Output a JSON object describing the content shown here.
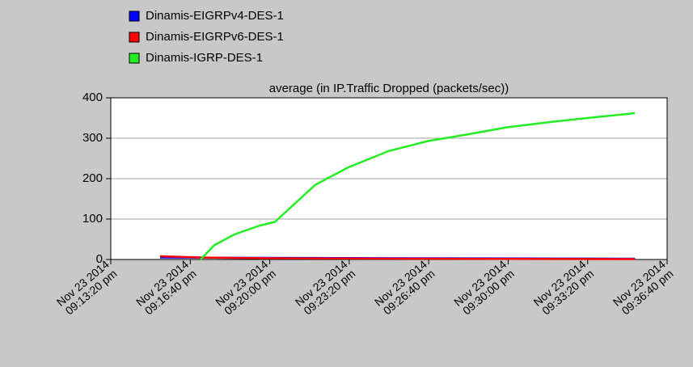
{
  "chart_data": {
    "type": "line",
    "title": "average (in IP.Traffic Dropped (packets/sec))",
    "xlim": [
      "2014-11-23T21:13:20",
      "2014-11-23T21:36:40"
    ],
    "xticks": [
      {
        "value": "2014-11-23T21:13:20",
        "label": "Nov 23 2014 09:13:20 pm"
      },
      {
        "value": "2014-11-23T21:16:40",
        "label": "Nov 23 2014 09:16:40 pm"
      },
      {
        "value": "2014-11-23T21:20:00",
        "label": "Nov 23 2014 09:20:00 pm"
      },
      {
        "value": "2014-11-23T21:23:20",
        "label": "Nov 23 2014 09:23:20 pm"
      },
      {
        "value": "2014-11-23T21:26:40",
        "label": "Nov 23 2014 09:26:40 pm"
      },
      {
        "value": "2014-11-23T21:30:00",
        "label": "Nov 23 2014 09:30:00 pm"
      },
      {
        "value": "2014-11-23T21:33:20",
        "label": "Nov 23 2014 09:33:20 pm"
      },
      {
        "value": "2014-11-23T21:36:40",
        "label": "Nov 23 2014 09:36:40 pm"
      }
    ],
    "ylim": [
      0,
      400
    ],
    "yticks": [
      0,
      100,
      200,
      300,
      400
    ],
    "grid": true,
    "legend": "top-left",
    "series": [
      {
        "name": "Dinamis-EIGRPv4-DES-1",
        "color": "#0000ff",
        "x": [
          "2014-11-23T21:15:24",
          "2014-11-23T21:20:00",
          "2014-11-23T21:26:40",
          "2014-11-23T21:35:19"
        ],
        "values": [
          5,
          4,
          3,
          2
        ]
      },
      {
        "name": "Dinamis-EIGRPv6-DES-1",
        "color": "#ff0000",
        "x": [
          "2014-11-23T21:15:24",
          "2014-11-23T21:17:06",
          "2014-11-23T21:20:00",
          "2014-11-23T21:26:40",
          "2014-11-23T21:35:19"
        ],
        "values": [
          8,
          5,
          3,
          2,
          1
        ]
      },
      {
        "name": "Dinamis-IGRP-DES-1",
        "color": "#22ee22",
        "x": [
          "2014-11-23T21:17:06",
          "2014-11-23T21:17:40",
          "2014-11-23T21:18:31",
          "2014-11-23T21:19:32",
          "2014-11-23T21:20:13",
          "2014-11-23T21:20:54",
          "2014-11-23T21:21:55",
          "2014-11-23T21:23:18",
          "2014-11-23T21:24:58",
          "2014-11-23T21:26:38",
          "2014-11-23T21:28:21",
          "2014-11-23T21:29:57",
          "2014-11-23T21:31:45",
          "2014-11-23T21:33:19",
          "2014-11-23T21:35:19"
        ],
        "values": [
          0,
          35,
          62,
          83,
          93,
          130,
          185,
          228,
          268,
          293,
          310,
          327,
          340,
          350,
          362
        ]
      }
    ]
  }
}
